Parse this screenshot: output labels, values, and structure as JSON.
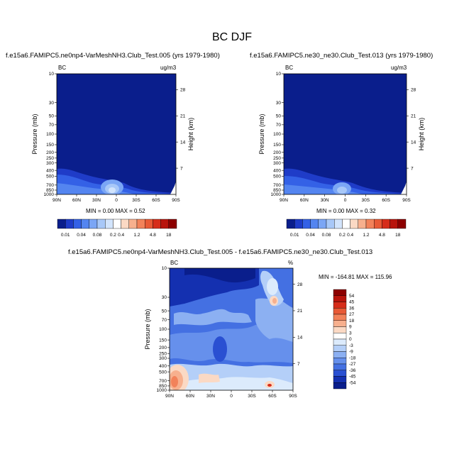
{
  "main_title": "BC DJF",
  "panels": [
    {
      "title": "f.e15a6.FAMIPC5.ne0np4-VarMeshNH3.Club_Test.005 (yrs 1979-1980)",
      "left_label": "BC",
      "right_label": "ug/m3",
      "stats": "MIN =   0.00  MAX =   0.52"
    },
    {
      "title": "f.e15a6.FAMIPC5.ne30_ne30.Club_Test.013 (yrs 1979-1980)",
      "left_label": "BC",
      "right_label": "ug/m3",
      "stats": "MIN =   0.00  MAX =   0.32"
    },
    {
      "title": "f.e15a6.FAMIPC5.ne0np4-VarMeshNH3.Club_Test.005 - f.e15a6.FAMIPC5.ne30_ne30.Club_Test.013",
      "left_label": "BC",
      "right_label": "%",
      "stats": "MIN = -164.81  MAX = 115.96"
    }
  ],
  "axes": {
    "ylabel": "Pressure (mb)",
    "y2label": "Height (km)",
    "x_ticks": [
      "90N",
      "60N",
      "30N",
      "0",
      "30S",
      "60S",
      "90S"
    ],
    "p_ticks": [
      "10",
      "30",
      "50",
      "70",
      "100",
      "150",
      "200",
      "250",
      "300",
      "400",
      "500",
      "700",
      "850",
      "1000"
    ],
    "h_ticks": [
      "28",
      "21",
      "14",
      "7"
    ]
  },
  "colorbar_top": {
    "labels": [
      "0.01",
      "0.04",
      "0.08",
      "0.2",
      "0.4",
      "1.2",
      "4.8",
      "18"
    ],
    "colors": [
      "#0a1e8c",
      "#1f3cc8",
      "#3461e6",
      "#5485f0",
      "#7ba6f5",
      "#a8c8f8",
      "#d2e4fc",
      "#ffffff",
      "#fbd9c4",
      "#f7b08e",
      "#f2825a",
      "#e85a36",
      "#d62d1a",
      "#b8140c",
      "#8c0000"
    ]
  },
  "colorbar_diff": {
    "labels": [
      "54",
      "45",
      "36",
      "27",
      "18",
      "9",
      "3",
      "0",
      "-3",
      "-9",
      "-18",
      "-27",
      "-36",
      "-45",
      "-54"
    ],
    "colors": [
      "#8c0000",
      "#b8140c",
      "#d62d1a",
      "#e85a36",
      "#f2825a",
      "#f7b08e",
      "#fbd9c4",
      "#ffffff",
      "#dcebfc",
      "#b4cff8",
      "#8cb0f2",
      "#6690ec",
      "#4470e2",
      "#2a50d2",
      "#1430b0",
      "#0a1e8c"
    ]
  },
  "chart_data": [
    {
      "type": "heatmap",
      "title": "f.e15a6.FAMIPC5.ne0np4-VarMeshNH3.Club_Test.005 (yrs 1979-1980)",
      "variable": "BC",
      "units": "ug/m3",
      "season": "DJF",
      "xlabel": "",
      "ylabel": "Pressure (mb)",
      "y2label": "Height (km)",
      "x_ticks": [
        "90N",
        "60N",
        "30N",
        "0",
        "30S",
        "60S",
        "90S"
      ],
      "y_ticks": [
        10,
        30,
        50,
        70,
        100,
        150,
        200,
        250,
        300,
        400,
        500,
        700,
        850,
        1000
      ],
      "min": 0.0,
      "max": 0.52,
      "contour_levels": [
        0.01,
        0.04,
        0.08,
        0.2,
        0.4,
        1.2,
        4.8,
        18
      ]
    },
    {
      "type": "heatmap",
      "title": "f.e15a6.FAMIPC5.ne30_ne30.Club_Test.013 (yrs 1979-1980)",
      "variable": "BC",
      "units": "ug/m3",
      "season": "DJF",
      "xlabel": "",
      "ylabel": "Pressure (mb)",
      "y2label": "Height (km)",
      "x_ticks": [
        "90N",
        "60N",
        "30N",
        "0",
        "30S",
        "60S",
        "90S"
      ],
      "y_ticks": [
        10,
        30,
        50,
        70,
        100,
        150,
        200,
        250,
        300,
        400,
        500,
        700,
        850,
        1000
      ],
      "min": 0.0,
      "max": 0.32,
      "contour_levels": [
        0.01,
        0.04,
        0.08,
        0.2,
        0.4,
        1.2,
        4.8,
        18
      ]
    },
    {
      "type": "heatmap",
      "title": "f.e15a6.FAMIPC5.ne0np4-VarMeshNH3.Club_Test.005 - f.e15a6.FAMIPC5.ne30_ne30.Club_Test.013",
      "variable": "BC",
      "units": "%",
      "season": "DJF",
      "xlabel": "",
      "ylabel": "Pressure (mb)",
      "y2label": "Height (km)",
      "x_ticks": [
        "90N",
        "60N",
        "30N",
        "0",
        "30S",
        "60S",
        "90S"
      ],
      "y_ticks": [
        10,
        30,
        50,
        70,
        100,
        150,
        200,
        250,
        300,
        400,
        500,
        700,
        850,
        1000
      ],
      "min": -164.81,
      "max": 115.96,
      "contour_levels": [
        -54,
        -45,
        -36,
        -27,
        -18,
        -9,
        -3,
        0,
        3,
        9,
        18,
        27,
        36,
        45,
        54
      ]
    }
  ]
}
